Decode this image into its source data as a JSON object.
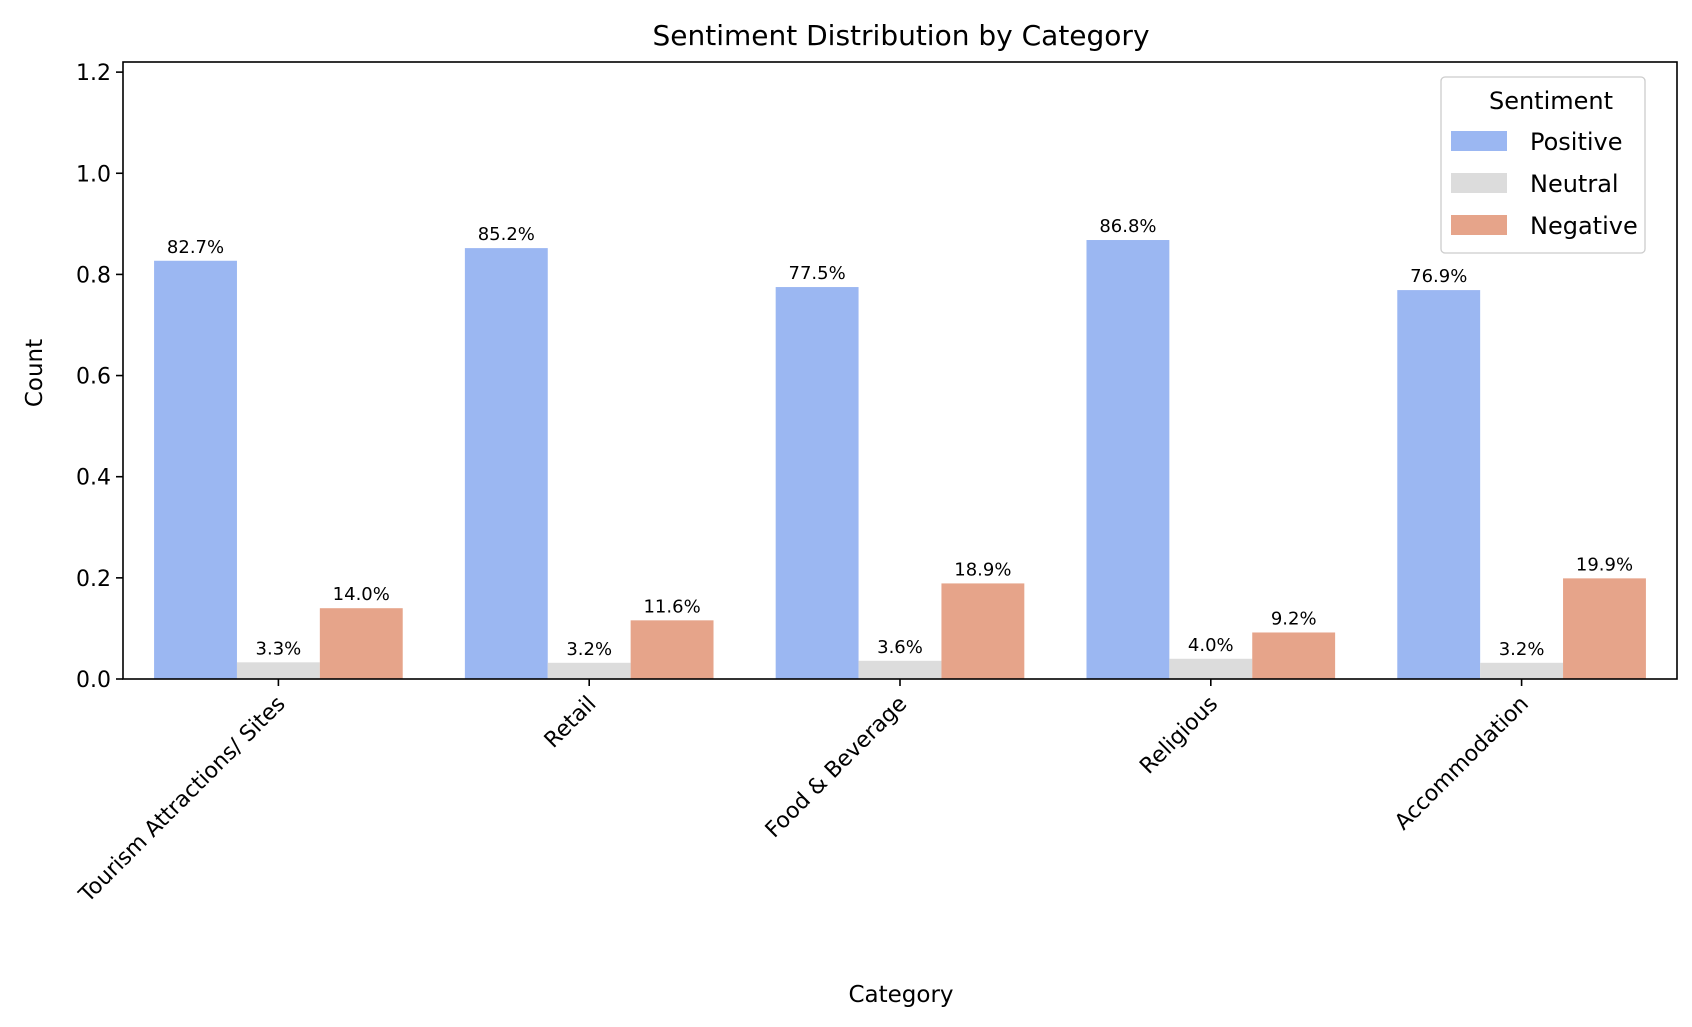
{
  "chart_data": {
    "type": "bar",
    "title": "Sentiment Distribution by Category",
    "xlabel": "Category",
    "ylabel": "Count",
    "categories": [
      "Tourism Attractions/ Sites",
      "Retail",
      "Food & Beverage",
      "Religious",
      "Accommodation"
    ],
    "series": [
      {
        "name": "Positive",
        "color": "#9bb7f2",
        "values": [
          0.827,
          0.852,
          0.775,
          0.868,
          0.769
        ],
        "labels": [
          "82.7%",
          "85.2%",
          "77.5%",
          "86.8%",
          "76.9%"
        ]
      },
      {
        "name": "Neutral",
        "color": "#dcdcdc",
        "values": [
          0.033,
          0.032,
          0.036,
          0.04,
          0.032
        ],
        "labels": [
          "3.3%",
          "3.2%",
          "3.6%",
          "4.0%",
          "3.2%"
        ]
      },
      {
        "name": "Negative",
        "color": "#e6a48a",
        "values": [
          0.14,
          0.116,
          0.189,
          0.092,
          0.199
        ],
        "labels": [
          "14.0%",
          "11.6%",
          "18.9%",
          "9.2%",
          "19.9%"
        ]
      }
    ],
    "ylim": [
      0,
      1.22
    ],
    "yticks": [
      "0.0",
      "0.2",
      "0.4",
      "0.6",
      "0.8",
      "1.0",
      "1.2"
    ],
    "ytick_values": [
      0,
      0.2,
      0.4,
      0.6,
      0.8,
      1.0,
      1.2
    ],
    "grid": false,
    "legend": {
      "title": "Sentiment",
      "placement": "top-right"
    }
  }
}
